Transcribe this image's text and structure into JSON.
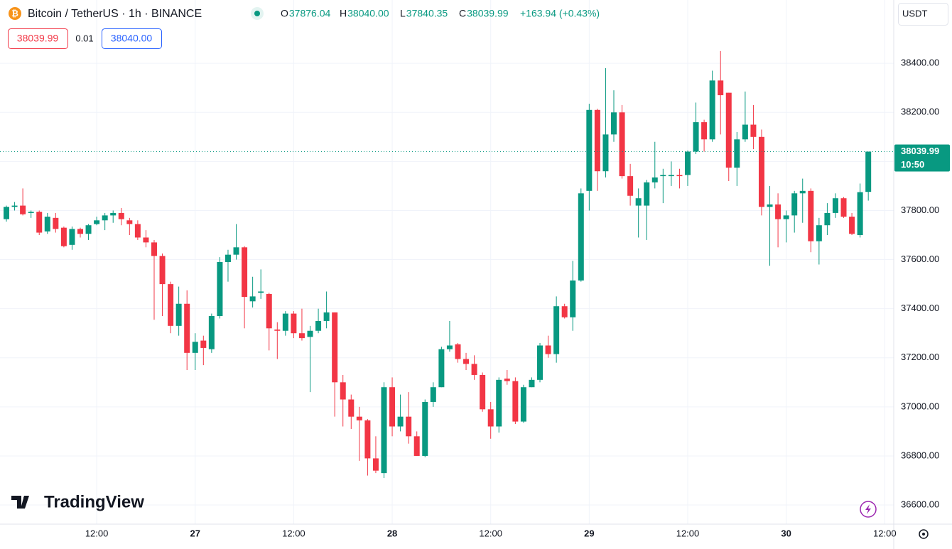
{
  "chart_data": {
    "type": "candlestick",
    "title": "Bitcoin / TetherUS · 1h · BINANCE",
    "ohlc_header": [
      {
        "label": "O",
        "value": "37876.04"
      },
      {
        "label": "H",
        "value": "38040.00"
      },
      {
        "label": "L",
        "value": "37840.35"
      },
      {
        "label": "C",
        "value": "38039.99"
      }
    ],
    "change": "+163.94 (+0.43%)",
    "sell_price": "38039.99",
    "spread": "0.01",
    "buy_price": "38040.00",
    "currency": "USDT",
    "last_price_label": "38039.99",
    "countdown": "10:50",
    "logo": "TradingView",
    "up_color": "#089981",
    "down_color": "#f23645",
    "grid": true,
    "ylim": [
      36522,
      38658
    ],
    "yticks": [
      {
        "value": 36600,
        "label": "36600.00"
      },
      {
        "value": 36800,
        "label": "36800.00"
      },
      {
        "value": 37000,
        "label": "37000.00"
      },
      {
        "value": 37200,
        "label": "37200.00"
      },
      {
        "value": 37400,
        "label": "37400.00"
      },
      {
        "value": 37600,
        "label": "37600.00"
      },
      {
        "value": 37800,
        "label": "37800.00"
      },
      {
        "value": 38000,
        "label": "38000.00"
      },
      {
        "value": 38200,
        "label": "38200.00"
      },
      {
        "value": 38400,
        "label": "38400.00"
      }
    ],
    "xlim": [
      -0.78,
      108.1
    ],
    "xticks": [
      {
        "value": 11,
        "label": "12:00"
      },
      {
        "value": 23,
        "label": "27"
      },
      {
        "value": 35,
        "label": "12:00"
      },
      {
        "value": 47,
        "label": "28"
      },
      {
        "value": 59,
        "label": "12:00"
      },
      {
        "value": 71,
        "label": "29"
      },
      {
        "value": 83,
        "label": "12:00"
      },
      {
        "value": 95,
        "label": "30"
      },
      {
        "value": 107,
        "label": "12:00"
      }
    ],
    "open": [
      37765,
      37815,
      37820,
      37790,
      37795,
      37715,
      37770,
      37730,
      37660,
      37725,
      37705,
      37745,
      37760,
      37780,
      37790,
      37760,
      37745,
      37690,
      37670,
      37615,
      37500,
      37330,
      37420,
      37220,
      37270,
      37235,
      37370,
      37590,
      37620,
      37650,
      37430,
      37465,
      37460,
      37315,
      37310,
      37380,
      37300,
      37285,
      37310,
      37350,
      37385,
      37100,
      37030,
      36960,
      36945,
      36790,
      36730,
      37080,
      36920,
      36960,
      36880,
      36800,
      37020,
      37080,
      37235,
      37255,
      37195,
      37175,
      37130,
      36990,
      36920,
      37115,
      37105,
      36940,
      37080,
      37110,
      37250,
      37215,
      37410,
      37365,
      37515,
      37880,
      38210,
      37960,
      38110,
      38200,
      37940,
      37820,
      37820,
      37915,
      37940,
      37940,
      37945,
      37945,
      38040,
      38160,
      38090,
      38330,
      38280,
      37975,
      38090,
      38150,
      38100,
      37815,
      37825,
      37765,
      37780,
      37870,
      37880,
      37675,
      37740,
      37790,
      37850,
      37775,
      37700,
      37876.04
    ],
    "high": [
      37820,
      37835,
      37890,
      37800,
      37800,
      37790,
      37790,
      37735,
      37735,
      37730,
      37745,
      37775,
      37790,
      37800,
      37810,
      37770,
      37760,
      37720,
      37680,
      37625,
      37510,
      37490,
      37475,
      37300,
      37290,
      37380,
      37610,
      37640,
      37745,
      37655,
      37530,
      37560,
      37465,
      37345,
      37390,
      37390,
      37400,
      37330,
      37400,
      37470,
      37385,
      37130,
      37050,
      37000,
      36950,
      36880,
      37100,
      37120,
      37050,
      37060,
      36900,
      37030,
      37100,
      37245,
      37350,
      37260,
      37220,
      37210,
      37140,
      37020,
      37120,
      37150,
      37120,
      37090,
      37120,
      37260,
      37290,
      37450,
      37420,
      37595,
      37890,
      38235,
      38215,
      38380,
      38290,
      38230,
      37990,
      37890,
      37925,
      38080,
      37970,
      38000,
      37970,
      38045,
      38240,
      38170,
      38370,
      38450,
      38280,
      38120,
      38285,
      38230,
      38130,
      37900,
      37870,
      37800,
      37880,
      37930,
      37890,
      37770,
      37830,
      37870,
      37855,
      37790,
      37910,
      38040
    ],
    "low": [
      37755,
      37800,
      37780,
      37770,
      37700,
      37705,
      37710,
      37650,
      37640,
      37690,
      37680,
      37740,
      37720,
      37750,
      37740,
      37700,
      37680,
      37650,
      37355,
      37370,
      37300,
      37290,
      37150,
      37150,
      37170,
      37220,
      37360,
      37510,
      37600,
      37320,
      37405,
      37440,
      37230,
      37195,
      37290,
      37280,
      37270,
      37060,
      37300,
      37320,
      36960,
      36920,
      36910,
      36780,
      36720,
      36730,
      36710,
      36880,
      36900,
      36850,
      36800,
      36795,
      37000,
      37080,
      37225,
      37180,
      37150,
      37110,
      36980,
      36870,
      36895,
      37090,
      36930,
      36935,
      37080,
      37100,
      37200,
      37180,
      37360,
      37310,
      37510,
      37800,
      37880,
      37935,
      38080,
      37930,
      37820,
      37690,
      37680,
      37890,
      37830,
      37900,
      37890,
      37900,
      38030,
      38040,
      38080,
      38110,
      37920,
      37900,
      38080,
      38050,
      37780,
      37575,
      37650,
      37670,
      37710,
      37750,
      37630,
      37580,
      37700,
      37770,
      37770,
      37700,
      37690,
      37840.35
    ],
    "close": [
      37815,
      37820,
      37785,
      37795,
      37710,
      37775,
      37725,
      37655,
      37725,
      37705,
      37740,
      37760,
      37780,
      37790,
      37765,
      37745,
      37690,
      37670,
      37615,
      37500,
      37330,
      37420,
      37220,
      37265,
      37240,
      37370,
      37590,
      37620,
      37650,
      37448,
      37450,
      37470,
      37320,
      37310,
      37380,
      37300,
      37280,
      37310,
      37350,
      37385,
      37100,
      37030,
      36960,
      36945,
      36790,
      36740,
      37080,
      36920,
      36960,
      36880,
      36800,
      37020,
      37080,
      37235,
      37250,
      37195,
      37175,
      37130,
      36990,
      36920,
      37110,
      37105,
      36940,
      37080,
      37110,
      37250,
      37215,
      37410,
      37365,
      37515,
      37870,
      38210,
      37960,
      38110,
      38200,
      37940,
      37860,
      37850,
      37915,
      37935,
      37945,
      37945,
      37940,
      38040,
      38160,
      38090,
      38330,
      38270,
      37975,
      38090,
      38150,
      38100,
      37815,
      37825,
      37765,
      37780,
      37870,
      37880,
      37675,
      37740,
      37790,
      37850,
      37775,
      37705,
      37875,
      38039.99
    ]
  }
}
